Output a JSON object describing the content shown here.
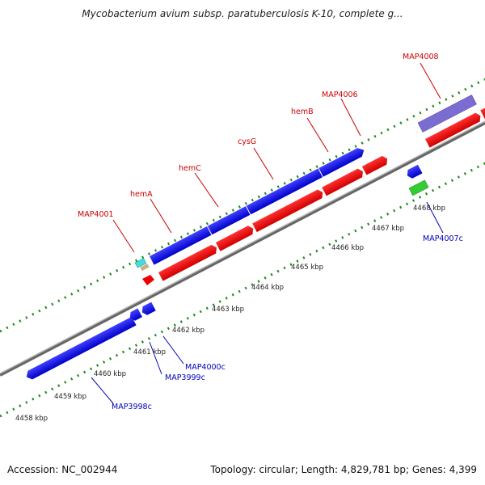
{
  "header": {
    "title": "Mycobacterium avium subsp. paratuberculosis K-10, complete g..."
  },
  "footer": {
    "accession": "Accession: NC_002944",
    "summary": "Topology: circular; Length: 4,829,781 bp; Genes: 4,399"
  },
  "map": {
    "scale_labels": [
      "4458 kbp",
      "4459 kbp",
      "4460 kbp",
      "4461 kbp",
      "4462 kbp",
      "4463 kbp",
      "4464 kbp",
      "4465 kbp",
      "4466 kbp",
      "4467 kbp",
      "4468 kbp"
    ],
    "forward_gene_labels": [
      "MAP4001",
      "hemA",
      "hemC",
      "cysG",
      "hemB",
      "MAP4006",
      "MAP4008"
    ],
    "reverse_gene_labels": [
      "MAP3998c",
      "MAP3999c",
      "MAP4000c",
      "MAP4007c"
    ]
  },
  "colors": {
    "forward_label": "#cc0000",
    "reverse_label": "#0000bb",
    "gene_blue": "#0000e0",
    "cds_red": "#ee0000",
    "gene_purple": "#7a6cd0",
    "gene_green": "#33cc33",
    "gene_cyan": "#44dddd",
    "gene_tan": "#c8b080",
    "ticks": "#1a8a1a",
    "backbone": "#888888"
  }
}
